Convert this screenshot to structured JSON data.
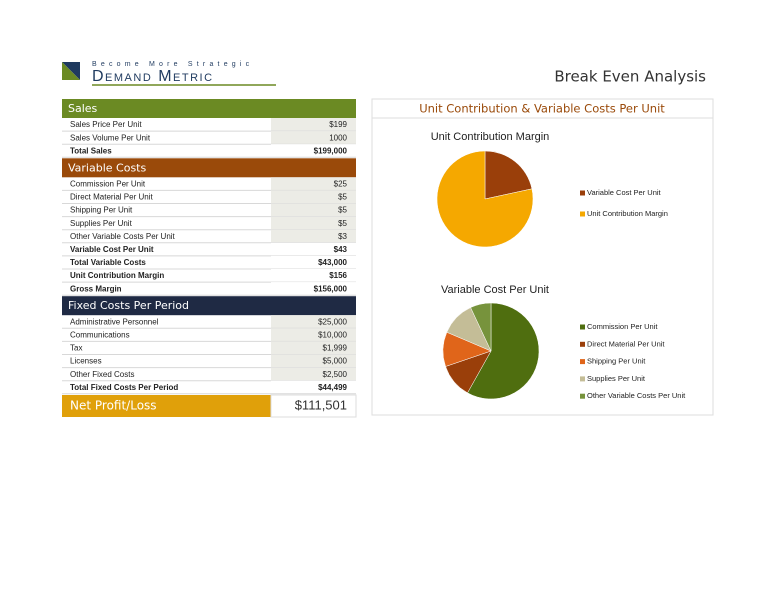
{
  "header": {
    "tagline": "Become More Strategic",
    "brand": "Demand Metric",
    "title": "Break Even Analysis"
  },
  "sections": [
    {
      "title": "Sales",
      "rows": [
        [
          "Sales Price Per Unit",
          "$199"
        ],
        [
          "Sales Volume Per Unit",
          "1000"
        ],
        [
          "Total Sales",
          "$199,000"
        ]
      ]
    },
    {
      "title": "Variable Costs",
      "rows": [
        [
          "Commission Per Unit",
          "$25"
        ],
        [
          "Direct Material Per Unit",
          "$5"
        ],
        [
          "Shipping Per Unit",
          "$5"
        ],
        [
          "Supplies Per Unit",
          "$5"
        ],
        [
          "Other Variable Costs Per Unit",
          "$3"
        ],
        [
          "Variable Cost Per Unit",
          "$43"
        ],
        [
          "Total Variable Costs",
          "$43,000"
        ],
        [
          "Unit Contribution Margin",
          "$156"
        ],
        [
          "Gross Margin",
          "$156,000"
        ]
      ]
    },
    {
      "title": "Fixed Costs Per Period",
      "rows": [
        [
          "Administrative Personnel",
          "$25,000"
        ],
        [
          "Communications",
          "$10,000"
        ],
        [
          "Tax",
          "$1,999"
        ],
        [
          "Licenses",
          "$5,000"
        ],
        [
          "Other Fixed Costs",
          "$2,500"
        ],
        [
          "Total Fixed Costs Per Period",
          "$44,499"
        ]
      ]
    }
  ],
  "net": {
    "label": "Net Profit/Loss",
    "value": "$111,501"
  },
  "panel_title": "Unit Contribution & Variable Costs Per Unit",
  "chart_data": [
    {
      "type": "pie",
      "title": "Unit Contribution Margin",
      "categories": [
        "Variable Cost Per Unit",
        "Unit Contribution Margin"
      ],
      "values": [
        43,
        156
      ],
      "colors": [
        "#9a3f0a",
        "#f5a800"
      ]
    },
    {
      "type": "pie",
      "title": "Variable Cost Per Unit",
      "categories": [
        "Commission Per Unit",
        "Direct Material Per Unit",
        "Shipping Per Unit",
        "Supplies Per Unit",
        "Other Variable Costs Per Unit"
      ],
      "values": [
        25,
        5,
        5,
        5,
        3
      ],
      "colors": [
        "#4f6e0f",
        "#9a3f0a",
        "#e0651a",
        "#c4bd97",
        "#77933c"
      ]
    }
  ]
}
